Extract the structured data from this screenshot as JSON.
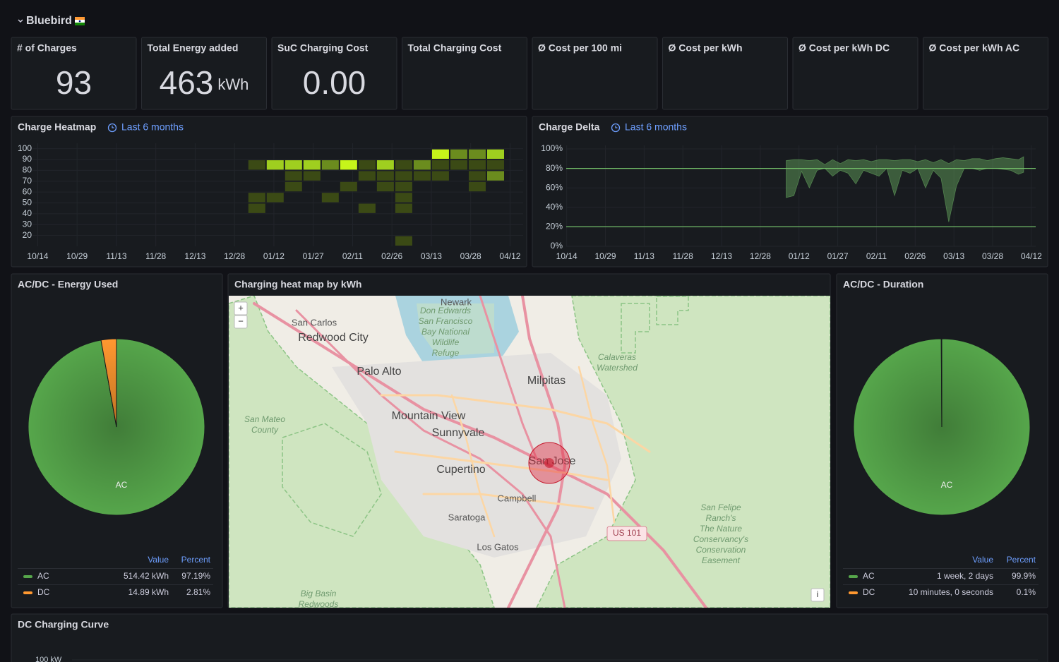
{
  "header": {
    "title": "Bluebird"
  },
  "stats": [
    {
      "title": "# of Charges",
      "value": "93"
    },
    {
      "title": "Total Energy added",
      "value": "463",
      "unit": "kWh"
    },
    {
      "title": "SuC Charging Cost",
      "value": "0.00"
    },
    {
      "title": "Total Charging Cost"
    },
    {
      "title": "Ø Cost per 100 mi"
    },
    {
      "title": "Ø Cost per kWh"
    },
    {
      "title": "Ø Cost per kWh DC"
    },
    {
      "title": "Ø Cost per kWh AC"
    }
  ],
  "heatmap": {
    "title": "Charge Heatmap",
    "time_range": "Last 6 months",
    "xlim": [
      -2,
      185
    ],
    "xticks": [
      {
        "value": 0,
        "label": "10/14"
      },
      {
        "value": 15,
        "label": "10/29"
      },
      {
        "value": 30,
        "label": "11/13"
      },
      {
        "value": 45,
        "label": "11/28"
      },
      {
        "value": 60,
        "label": "12/13"
      },
      {
        "value": 75,
        "label": "12/28"
      },
      {
        "value": 90,
        "label": "01/12"
      },
      {
        "value": 105,
        "label": "01/27"
      },
      {
        "value": 120,
        "label": "02/11"
      },
      {
        "value": 135,
        "label": "02/26"
      },
      {
        "value": 150,
        "label": "03/13"
      },
      {
        "value": 165,
        "label": "03/28"
      },
      {
        "value": 180,
        "label": "04/12"
      }
    ],
    "ylim": [
      10,
      105
    ],
    "yticks": [
      20,
      30,
      40,
      50,
      60,
      70,
      80,
      90,
      100
    ],
    "colors": [
      "#3b4a15",
      "#6b8c1e",
      "#9fcf1f",
      "#c6f51a"
    ],
    "cells": [
      {
        "x": [
          80,
          87
        ],
        "y": [
          80,
          90
        ],
        "count": 1
      },
      {
        "x": [
          80,
          87
        ],
        "y": [
          50,
          60
        ],
        "count": 1
      },
      {
        "x": [
          80,
          87
        ],
        "y": [
          40,
          50
        ],
        "count": 1
      },
      {
        "x": [
          87,
          94
        ],
        "y": [
          80,
          90
        ],
        "count": 3
      },
      {
        "x": [
          87,
          94
        ],
        "y": [
          50,
          60
        ],
        "count": 1
      },
      {
        "x": [
          94,
          101
        ],
        "y": [
          80,
          90
        ],
        "count": 3
      },
      {
        "x": [
          94,
          101
        ],
        "y": [
          70,
          80
        ],
        "count": 1
      },
      {
        "x": [
          94,
          101
        ],
        "y": [
          60,
          70
        ],
        "count": 1
      },
      {
        "x": [
          101,
          108
        ],
        "y": [
          80,
          90
        ],
        "count": 3
      },
      {
        "x": [
          101,
          108
        ],
        "y": [
          70,
          80
        ],
        "count": 1
      },
      {
        "x": [
          108,
          115
        ],
        "y": [
          80,
          90
        ],
        "count": 2
      },
      {
        "x": [
          108,
          115
        ],
        "y": [
          50,
          60
        ],
        "count": 1
      },
      {
        "x": [
          115,
          122
        ],
        "y": [
          80,
          90
        ],
        "count": 4
      },
      {
        "x": [
          115,
          122
        ],
        "y": [
          60,
          70
        ],
        "count": 1
      },
      {
        "x": [
          122,
          129
        ],
        "y": [
          80,
          90
        ],
        "count": 1
      },
      {
        "x": [
          122,
          129
        ],
        "y": [
          70,
          80
        ],
        "count": 1
      },
      {
        "x": [
          122,
          129
        ],
        "y": [
          40,
          50
        ],
        "count": 1
      },
      {
        "x": [
          129,
          136
        ],
        "y": [
          80,
          90
        ],
        "count": 3
      },
      {
        "x": [
          129,
          136
        ],
        "y": [
          70,
          80
        ],
        "count": 1
      },
      {
        "x": [
          129,
          136
        ],
        "y": [
          60,
          70
        ],
        "count": 1
      },
      {
        "x": [
          136,
          143
        ],
        "y": [
          80,
          90
        ],
        "count": 1
      },
      {
        "x": [
          136,
          143
        ],
        "y": [
          70,
          80
        ],
        "count": 1
      },
      {
        "x": [
          136,
          143
        ],
        "y": [
          60,
          70
        ],
        "count": 1
      },
      {
        "x": [
          136,
          143
        ],
        "y": [
          50,
          60
        ],
        "count": 1
      },
      {
        "x": [
          136,
          143
        ],
        "y": [
          40,
          50
        ],
        "count": 1
      },
      {
        "x": [
          136,
          143
        ],
        "y": [
          10,
          20
        ],
        "count": 1
      },
      {
        "x": [
          143,
          150
        ],
        "y": [
          80,
          90
        ],
        "count": 2
      },
      {
        "x": [
          143,
          150
        ],
        "y": [
          70,
          80
        ],
        "count": 1
      },
      {
        "x": [
          150,
          157
        ],
        "y": [
          90,
          100
        ],
        "count": 4
      },
      {
        "x": [
          150,
          157
        ],
        "y": [
          80,
          90
        ],
        "count": 1
      },
      {
        "x": [
          150,
          157
        ],
        "y": [
          70,
          80
        ],
        "count": 1
      },
      {
        "x": [
          157,
          164
        ],
        "y": [
          90,
          100
        ],
        "count": 2
      },
      {
        "x": [
          157,
          164
        ],
        "y": [
          80,
          90
        ],
        "count": 1
      },
      {
        "x": [
          164,
          171
        ],
        "y": [
          90,
          100
        ],
        "count": 2
      },
      {
        "x": [
          164,
          171
        ],
        "y": [
          80,
          90
        ],
        "count": 1
      },
      {
        "x": [
          164,
          171
        ],
        "y": [
          70,
          80
        ],
        "count": 1
      },
      {
        "x": [
          164,
          171
        ],
        "y": [
          60,
          70
        ],
        "count": 1
      },
      {
        "x": [
          171,
          178
        ],
        "y": [
          90,
          100
        ],
        "count": 3
      },
      {
        "x": [
          171,
          178
        ],
        "y": [
          80,
          90
        ],
        "count": 1
      },
      {
        "x": [
          171,
          178
        ],
        "y": [
          70,
          80
        ],
        "count": 2
      }
    ]
  },
  "delta": {
    "title": "Charge Delta",
    "time_range": "Last 6 months",
    "xlim": [
      -1,
      182.5
    ],
    "xticks": [
      {
        "value": 0,
        "label": "10/14"
      },
      {
        "value": 15,
        "label": "10/29"
      },
      {
        "value": 30,
        "label": "11/13"
      },
      {
        "value": 45,
        "label": "11/28"
      },
      {
        "value": 60,
        "label": "12/13"
      },
      {
        "value": 75,
        "label": "12/28"
      },
      {
        "value": 90,
        "label": "01/12"
      },
      {
        "value": 105,
        "label": "01/27"
      },
      {
        "value": 120,
        "label": "02/11"
      },
      {
        "value": 135,
        "label": "02/26"
      },
      {
        "value": 150,
        "label": "03/13"
      },
      {
        "value": 165,
        "label": "03/28"
      },
      {
        "value": 180,
        "label": "04/12"
      }
    ],
    "ylim": [
      0,
      100
    ],
    "yticks": [
      {
        "value": 0,
        "label": "0%"
      },
      {
        "value": 20,
        "label": "20%"
      },
      {
        "value": 40,
        "label": "40%"
      },
      {
        "value": 60,
        "label": "60%"
      },
      {
        "value": 80,
        "label": "80%"
      },
      {
        "value": 100,
        "label": "100%"
      }
    ],
    "thresholds": [
      80,
      20
    ],
    "color": "#73bf69",
    "x": [
      85,
      88,
      91,
      94,
      97,
      100,
      103,
      106,
      109,
      112,
      115,
      118,
      121,
      124,
      127,
      130,
      133,
      136,
      139,
      142,
      145,
      148,
      151,
      154,
      157,
      160,
      163,
      166,
      169,
      172,
      175,
      177
    ],
    "upper": [
      88,
      89,
      89,
      88,
      89,
      84,
      89,
      85,
      89,
      88,
      89,
      87,
      89,
      89,
      88,
      89,
      89,
      87,
      89,
      86,
      89,
      85,
      89,
      88,
      90,
      90,
      88,
      90,
      91,
      90,
      89,
      92
    ],
    "lower": [
      50,
      52,
      77,
      60,
      78,
      80,
      72,
      78,
      75,
      64,
      78,
      75,
      72,
      80,
      52,
      78,
      75,
      80,
      60,
      78,
      70,
      25,
      62,
      80,
      80,
      78,
      80,
      80,
      79,
      78,
      74,
      76
    ]
  },
  "energy_pie": {
    "title": "AC/DC - Energy Used",
    "slice_label": "AC",
    "columns": [
      "Value",
      "Percent"
    ],
    "series": [
      {
        "name": "AC",
        "color": "#56a64b",
        "value": 514.42,
        "value_label": "514.42 kWh",
        "percent": 97.19,
        "percent_label": "97.19%"
      },
      {
        "name": "DC",
        "color": "#ff9830",
        "value": 14.89,
        "value_label": "14.89 kWh",
        "percent": 2.81,
        "percent_label": "2.81%"
      }
    ]
  },
  "duration_pie": {
    "title": "AC/DC - Duration",
    "slice_label": "AC",
    "columns": [
      "Value",
      "Percent"
    ],
    "series": [
      {
        "name": "AC",
        "color": "#56a64b",
        "value_label": "1 week, 2 days",
        "percent": 99.9,
        "percent_label": "99.9%"
      },
      {
        "name": "DC",
        "color": "#ff9830",
        "value_label": "10 minutes, 0 seconds",
        "percent": 0.1,
        "percent_label": "0.1%"
      }
    ]
  },
  "map": {
    "title": "Charging heat map by kWh",
    "zoom_in": "+",
    "zoom_out": "−",
    "info": "i",
    "places": [
      "Newark",
      "San Carlos",
      "Redwood City",
      "Palo Alto",
      "Milpitas",
      "Mountain View",
      "Sunnyvale",
      "Cupertino",
      "San Jose",
      "Campbell",
      "Saratoga",
      "Los Gatos"
    ],
    "areas": [
      [
        "Don Edwards",
        "San Francisco",
        "Bay National",
        "Wildlife",
        "Refuge"
      ],
      [
        "Calaveras",
        "Watershed"
      ],
      [
        "San Mateo",
        "County"
      ],
      [
        "San Felipe",
        "Ranch's",
        "The Nature",
        "Conservancy's",
        "Conservation",
        "Easement"
      ],
      [
        "Big Basin",
        "Redwoods"
      ]
    ],
    "road_sign": "US 101"
  },
  "dc_curve": {
    "title": "DC Charging Curve",
    "ytick": "100 kW"
  }
}
